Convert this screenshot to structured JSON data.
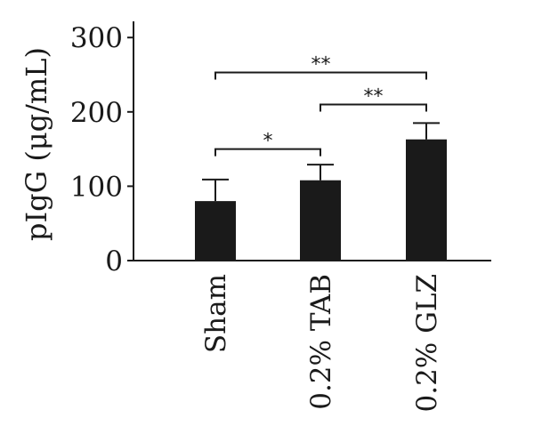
{
  "chart_data": {
    "type": "bar",
    "title": "",
    "xlabel": "",
    "ylabel": "pIgG (μg/mL)",
    "ylim": [
      0,
      300
    ],
    "yticks": [
      0,
      100,
      200,
      300
    ],
    "ytick_labels": [
      "0",
      "100",
      "200",
      "300"
    ],
    "grid": false,
    "categories": [
      "Sham",
      "0.2% TAB",
      "0.2% GLZ"
    ],
    "values": [
      80,
      108,
      163
    ],
    "errors": [
      29,
      21,
      22
    ],
    "bar_color": "#1a1a1a",
    "significance": [
      {
        "from": 0,
        "to": 1,
        "label": "*",
        "y": 150
      },
      {
        "from": 1,
        "to": 2,
        "label": "**",
        "y": 210
      },
      {
        "from": 0,
        "to": 2,
        "label": "**",
        "y": 253
      }
    ]
  }
}
